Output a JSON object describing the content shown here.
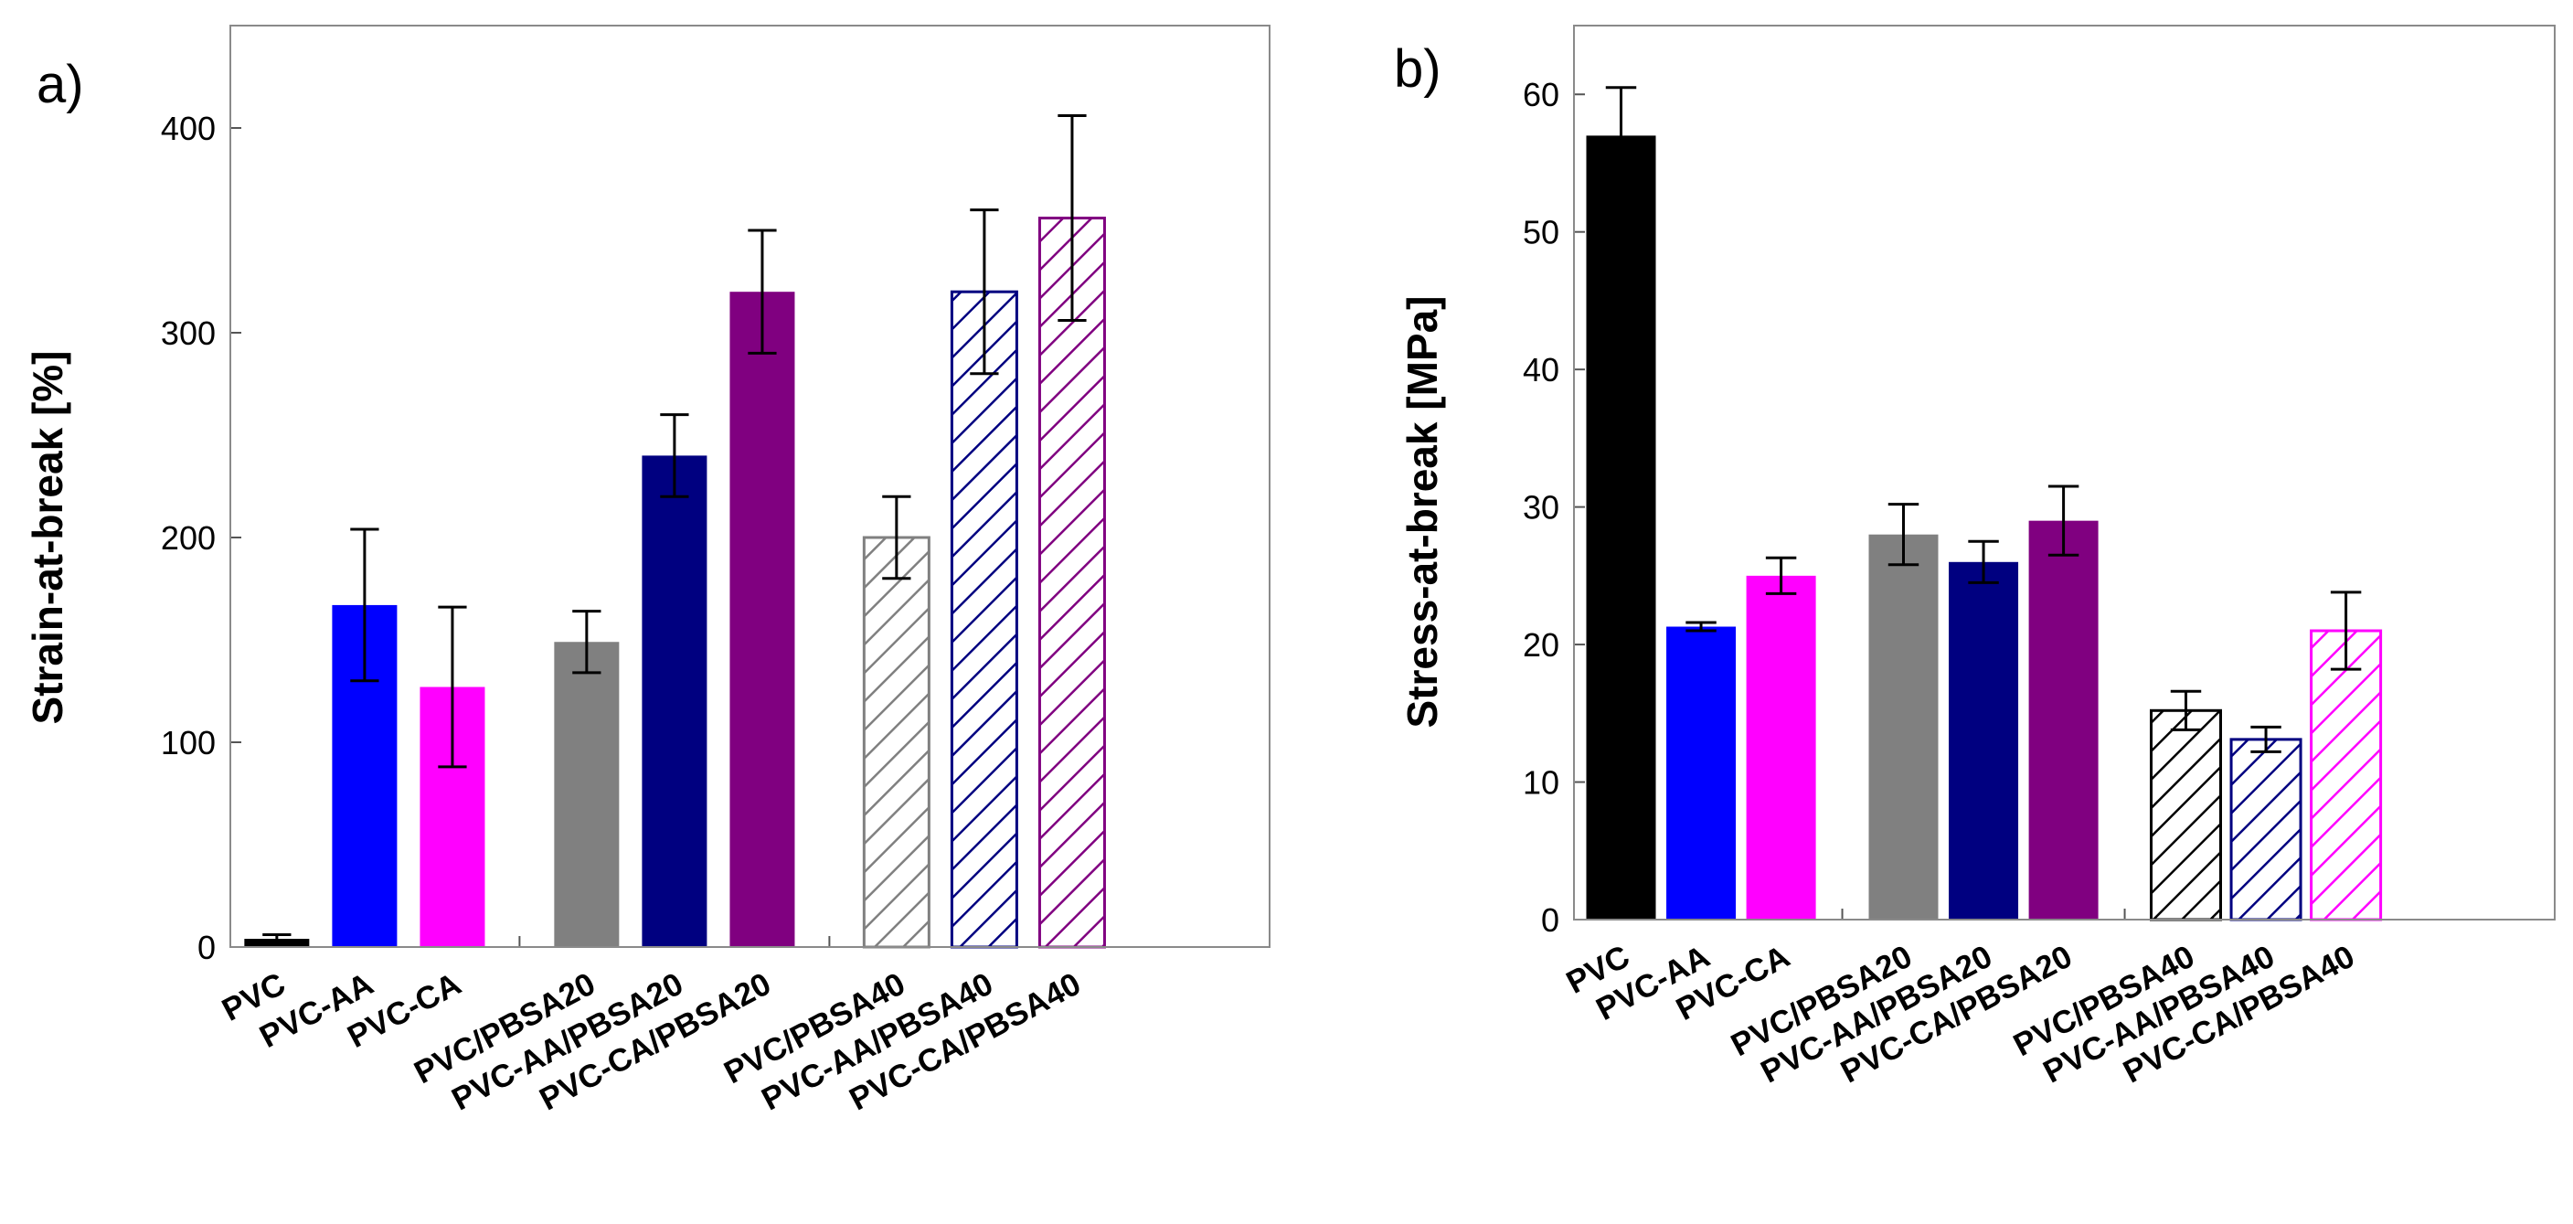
{
  "chart_data": [
    {
      "panel_label": "a)",
      "type": "bar",
      "ylabel": "Strain-at-break [%]",
      "xlabel": "",
      "ylim": [
        0,
        450
      ],
      "yticks": [
        0,
        100,
        200,
        300,
        400
      ],
      "error_bars": true,
      "grid": false,
      "categories": [
        "PVC",
        "PVC-AA",
        "PVC-CA",
        "PVC/PBSA20",
        "PVC-AA/PBSA20",
        "PVC-CA/PBSA20",
        "PVC/PBSA40",
        "PVC-AA/PBSA40",
        "PVC-CA/PBSA40"
      ],
      "groups": [
        {
          "slots": [
            0.45,
            1.3,
            2.15
          ],
          "indices": [
            0,
            1,
            2
          ]
        },
        {
          "slots": [
            3.45,
            4.3,
            5.15
          ],
          "indices": [
            3,
            4,
            5
          ]
        },
        {
          "slots": [
            6.45,
            7.3,
            8.15
          ],
          "indices": [
            6,
            7,
            8
          ]
        }
      ],
      "values": [
        4,
        167,
        127,
        149,
        240,
        320,
        200,
        320,
        356
      ],
      "errors": [
        2,
        37,
        39,
        15,
        20,
        30,
        20,
        40,
        50
      ],
      "colors": [
        "#000000",
        "#0000ff",
        "#ff00ff",
        "#808080",
        "#000080",
        "#800080",
        "#808080",
        "#000080",
        "#800080"
      ],
      "patterns": [
        "solid",
        "solid",
        "solid",
        "solid",
        "solid",
        "solid",
        "hatch",
        "hatch",
        "hatch"
      ]
    },
    {
      "panel_label": "b)",
      "type": "bar",
      "ylabel": "Stress-at-break [MPa]",
      "xlabel": "",
      "ylim": [
        0,
        65
      ],
      "yticks": [
        0,
        10,
        20,
        30,
        40,
        50,
        60
      ],
      "error_bars": true,
      "grid": false,
      "categories": [
        "PVC",
        "PVC-AA",
        "PVC-CA",
        "PVC/PBSA20",
        "PVC-AA/PBSA20",
        "PVC-CA/PBSA20",
        "PVC/PBSA40",
        "PVC-AA/PBSA40",
        "PVC-CA/PBSA40"
      ],
      "groups": [
        {
          "slots": [
            0.5,
            1.35,
            2.2
          ],
          "indices": [
            0,
            1,
            2
          ]
        },
        {
          "slots": [
            3.5,
            4.35,
            5.2
          ],
          "indices": [
            3,
            4,
            5
          ]
        },
        {
          "slots": [
            6.5,
            7.35,
            8.2
          ],
          "indices": [
            6,
            7,
            8
          ]
        }
      ],
      "values": [
        57,
        21.3,
        25,
        28,
        26,
        29,
        15.2,
        13.1,
        21
      ],
      "errors": [
        3.5,
        0.3,
        1.3,
        2.2,
        1.5,
        2.5,
        1.4,
        0.9,
        2.8
      ],
      "colors": [
        "#000000",
        "#0000ff",
        "#ff00ff",
        "#808080",
        "#000080",
        "#800080",
        "#000000",
        "#000080",
        "#ff00ff"
      ],
      "patterns": [
        "solid",
        "solid",
        "solid",
        "solid",
        "solid",
        "solid",
        "hatch",
        "hatch",
        "hatch"
      ]
    }
  ]
}
